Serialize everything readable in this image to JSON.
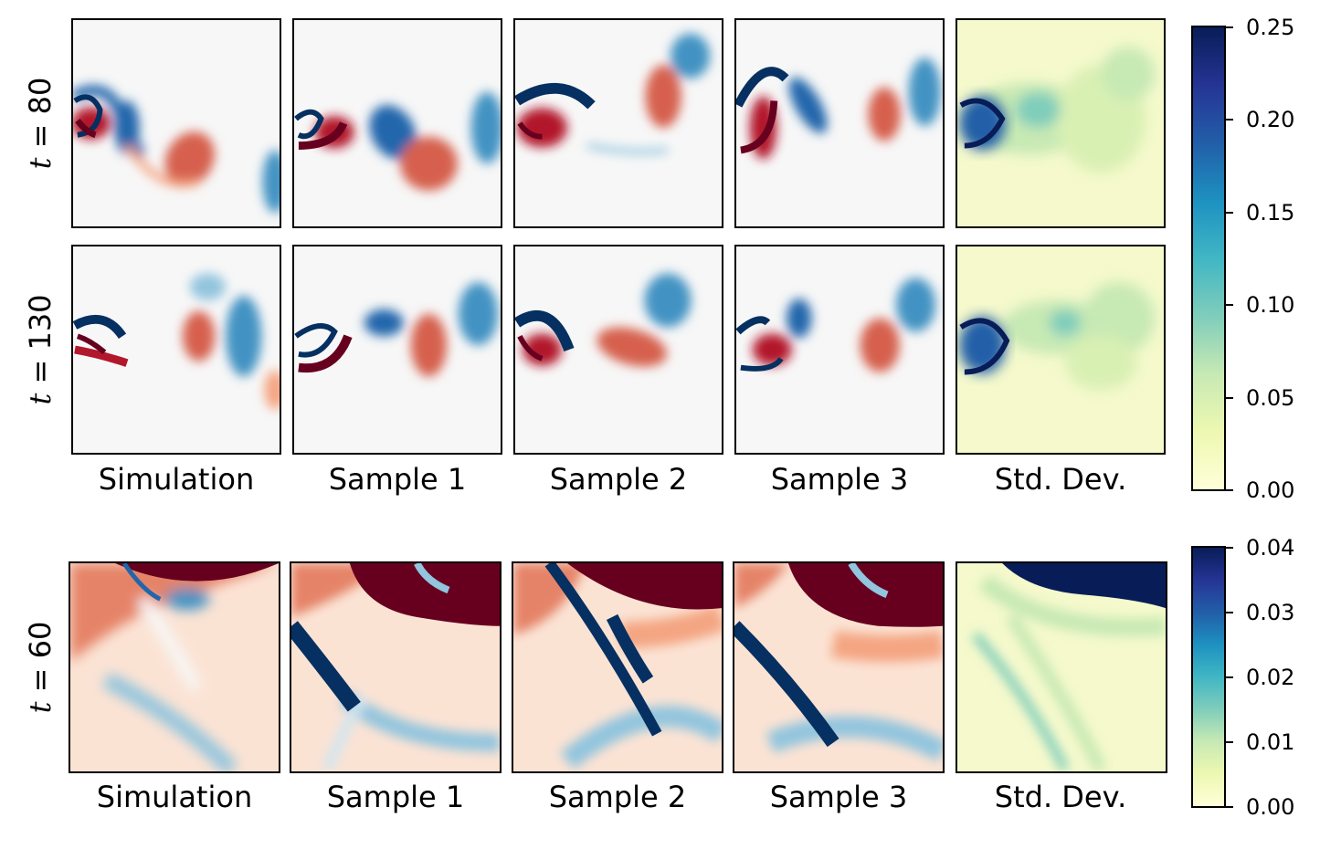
{
  "chart_data": [
    {
      "type": "heatmap",
      "description_rows": [
        "t = 80",
        "t = 130"
      ],
      "row_labels": [
        {
          "var": "t",
          "eq": "=",
          "value": "80"
        },
        {
          "var": "t",
          "eq": "=",
          "value": "130"
        }
      ],
      "column_labels": [
        "Simulation",
        "Sample 1",
        "Sample 2",
        "Sample 3",
        "Std. Dev."
      ],
      "field_colormap": "RdBu_r",
      "std_colormap": "YlGnBu",
      "colorbar": {
        "min": 0.0,
        "max": 0.25,
        "ticks": [
          "0.00",
          "0.05",
          "0.10",
          "0.15",
          "0.20",
          "0.25"
        ]
      }
    },
    {
      "type": "heatmap",
      "row_labels": [
        {
          "var": "t",
          "eq": "=",
          "value": "60"
        }
      ],
      "column_labels": [
        "Simulation",
        "Sample 1",
        "Sample 2",
        "Sample 3",
        "Std. Dev."
      ],
      "field_colormap": "RdBu_r",
      "std_colormap": "YlGnBu",
      "colorbar": {
        "min": 0.0,
        "max": 0.04,
        "ticks": [
          "0.00",
          "0.01",
          "0.02",
          "0.03",
          "0.04"
        ]
      }
    }
  ],
  "colors": {
    "red_dark": "#67001f",
    "red": "#d6604d",
    "red_light": "#f4a582",
    "neutral": "#f7f7f7",
    "blue_light": "#92c5de",
    "blue": "#2166ac",
    "blue_dark": "#053061",
    "std_low": "#ffffd9",
    "std_mid": "#41b6c4",
    "std_high": "#081d58"
  }
}
